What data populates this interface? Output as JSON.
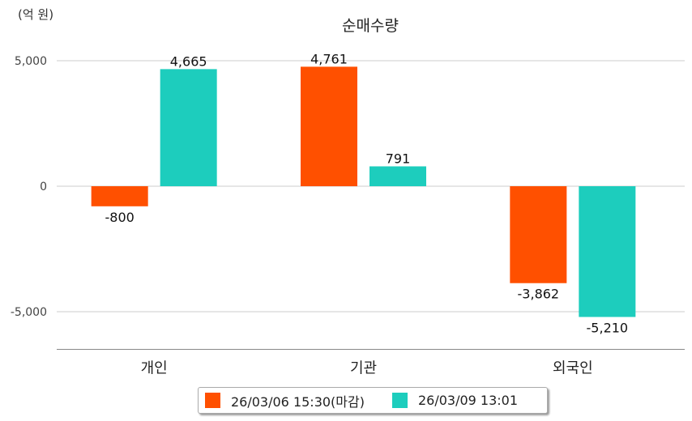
{
  "chart_data": {
    "type": "bar",
    "title": "순매수량",
    "unit_label": "(억 원)",
    "categories": [
      "개인",
      "기관",
      "외국인"
    ],
    "series": [
      {
        "name": "26/03/06 15:30(마감)",
        "color": "#ff5000",
        "values": [
          -800,
          4761,
          -3862
        ],
        "labels": [
          "-800",
          "4,761",
          "-3,862"
        ]
      },
      {
        "name": "26/03/09 13:01",
        "color": "#1dcdbd",
        "values": [
          4665,
          791,
          -5210
        ],
        "labels": [
          "4,665",
          "791",
          "-5,210"
        ]
      }
    ],
    "yticks": [
      5000,
      0,
      -5000
    ],
    "ytick_labels": [
      "5,000",
      "0",
      "-5,000"
    ],
    "ylim": [
      -6500,
      6000
    ],
    "grid": true,
    "legend_position": "bottom"
  }
}
